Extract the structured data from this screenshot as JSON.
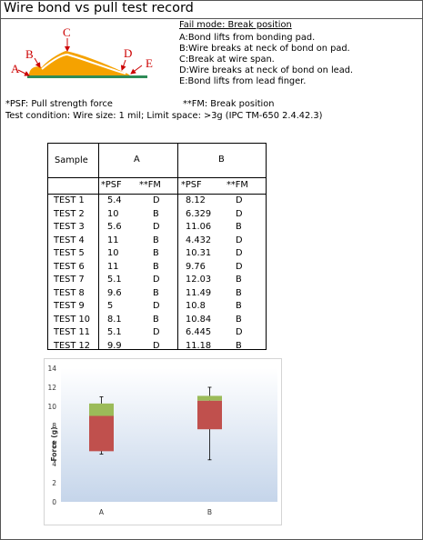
{
  "title": "Wire bond vs pull test record",
  "diagram": {
    "labels": [
      "A",
      "B",
      "C",
      "D",
      "E"
    ],
    "colors": {
      "wire": "#F5A200",
      "substrate": "#2E8B57",
      "arrow": "#CC0000"
    }
  },
  "fail_mode": {
    "heading": "Fail mode: Break position",
    "items": [
      "A:Bond lifts from bonding pad.",
      "B:Wire breaks at neck of bond on pad.",
      "C:Break at wire span.",
      "D:Wire breaks at neck of bond on lead.",
      "E:Bond lifts from lead finger."
    ]
  },
  "notes": {
    "psf": "*PSF: Pull strength force",
    "fm": "**FM: Break position",
    "condition": "Test condition: Wire size: 1 mil; Limit space: >3g  (IPC TM-650 2.4.42.3)"
  },
  "table": {
    "sample_header": "Sample",
    "group_a": "A",
    "group_b": "B",
    "sub_headers": [
      "*PSF",
      "**FM",
      "*PSF",
      "**FM"
    ],
    "rows": [
      [
        "TEST 1",
        "5.4",
        "D",
        "8.12",
        "D"
      ],
      [
        "TEST 2",
        "10",
        "B",
        "6.329",
        "D"
      ],
      [
        "TEST 3",
        "5.6",
        "D",
        "11.06",
        "B"
      ],
      [
        "TEST 4",
        "11",
        "B",
        "4.432",
        "D"
      ],
      [
        "TEST 5",
        "10",
        "B",
        "10.31",
        "D"
      ],
      [
        "TEST 6",
        "11",
        "B",
        "9.76",
        "D"
      ],
      [
        "TEST 7",
        "5.1",
        "D",
        "12.03",
        "B"
      ],
      [
        "TEST 8",
        "9.6",
        "B",
        "11.49",
        "B"
      ],
      [
        "TEST 9",
        "5",
        "D",
        "10.8",
        "B"
      ],
      [
        "TEST 10",
        "8.1",
        "B",
        "10.84",
        "B"
      ],
      [
        "TEST 11",
        "5.1",
        "D",
        "6.445",
        "D"
      ],
      [
        "TEST 12",
        "9.9",
        "D",
        "11.18",
        "B"
      ]
    ]
  },
  "chart_data": {
    "type": "box",
    "categories": [
      "A",
      "B"
    ],
    "ylabel": "Force (g)",
    "ylim": [
      0,
      14
    ],
    "yticks": [
      0,
      2,
      4,
      6,
      8,
      10,
      12,
      14
    ],
    "boxes": [
      {
        "category": "A",
        "min": 5.0,
        "q1": 5.3,
        "median": 9.0,
        "q3": 10.3,
        "max": 11.0
      },
      {
        "category": "B",
        "min": 4.4,
        "q1": 7.6,
        "median": 10.6,
        "q3": 11.1,
        "max": 12.0
      }
    ],
    "colors": {
      "lower_box": "#C0504D",
      "upper_box": "#9BBB59",
      "bg_top": "#FFFFFF",
      "bg_bottom": "#C5D5EA"
    },
    "grid": false,
    "legend": "none"
  }
}
